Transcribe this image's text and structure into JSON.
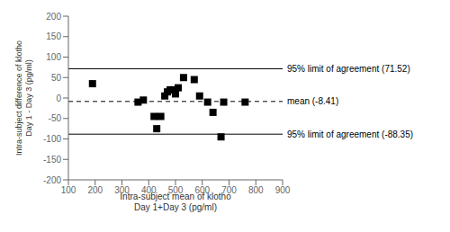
{
  "chart_data": {
    "type": "scatter",
    "x": [
      190,
      360,
      380,
      420,
      430,
      445,
      460,
      470,
      480,
      490,
      500,
      510,
      530,
      570,
      590,
      620,
      640,
      670,
      680,
      760
    ],
    "values": [
      35,
      -10,
      -5,
      -45,
      -75,
      -45,
      5,
      15,
      20,
      20,
      10,
      25,
      50,
      45,
      5,
      -10,
      -35,
      -95,
      -10,
      -10
    ],
    "color": "#000000",
    "marker": "square",
    "xlim": [
      100,
      900
    ],
    "ylim": [
      -200,
      200
    ],
    "xticks": [
      100,
      200,
      300,
      400,
      500,
      600,
      700,
      800,
      900
    ],
    "yticks": [
      -200,
      -150,
      -100,
      -50,
      0,
      50,
      100,
      150,
      200
    ],
    "xlabel": "Intra-subject mean of klotho\nDay 1+Day 3 (pg/ml)",
    "ylabel": "Intra-subject difference of klotho\nDay 1 - Day 3 (pg/ml)",
    "grid": false,
    "hlines": [
      {
        "value": 71.52,
        "label": "95% limit of agreement (71.52)",
        "line_style": "solid",
        "color": "#000000"
      },
      {
        "value": -8.41,
        "label": "mean (-8.41)",
        "line_style": "dashed",
        "color": "#000000"
      },
      {
        "value": -88.35,
        "label": "95% limit of agreement (-88.35)",
        "line_style": "solid",
        "color": "#000000"
      }
    ]
  }
}
